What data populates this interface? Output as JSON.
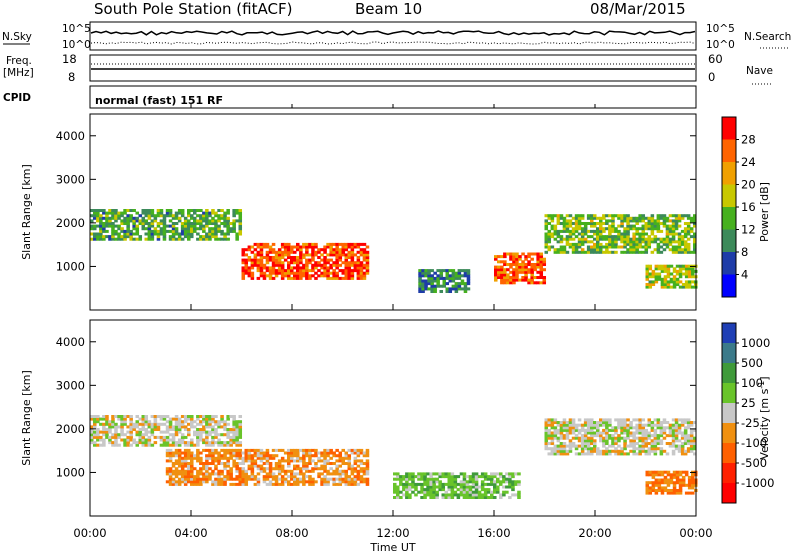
{
  "header": {
    "title": "South Pole Station (fitACF)",
    "beam": "Beam 10",
    "date": "08/Mar/2015"
  },
  "noise_panel": {
    "left_label": "N.Sky",
    "left_ticks": [
      "10^5",
      "10^0"
    ],
    "right_label": "N.Search",
    "right_ticks": [
      "10^5",
      "10^0"
    ]
  },
  "freq_panel": {
    "left_label_1": "Freq.",
    "left_label_2": "[MHz]",
    "left_ticks": [
      "18",
      "8"
    ],
    "right_label": "Nave",
    "right_ticks": [
      "60",
      "0"
    ]
  },
  "cpid_panel": {
    "label": "CPID",
    "mode": "normal (fast) 151 RF"
  },
  "colors": {
    "power": [
      "#0000ff",
      "#1e3ca8",
      "#3c8a5a",
      "#46b01e",
      "#c8c800",
      "#f0a000",
      "#ff6400",
      "#ff0000"
    ],
    "velocity": [
      "#1f3fb5",
      "#3b7a8a",
      "#3f9a3a",
      "#69c42a",
      "#c8c8c8",
      "#f09010",
      "#ff6000",
      "#ff2000",
      "#ff0000"
    ]
  },
  "chart_data": [
    {
      "type": "heatmap",
      "title": "Power",
      "ylabel": "Slant Range [km]",
      "xlabel": "",
      "xlim": [
        "00:00",
        "24:00"
      ],
      "ylim": [
        0,
        4500
      ],
      "yticks": [
        1000,
        2000,
        3000,
        4000
      ],
      "colorbar": {
        "label": "Power [dB]",
        "ticks": [
          "28",
          "24",
          "20",
          "16",
          "12",
          "8",
          "4"
        ],
        "range": [
          0,
          30
        ]
      },
      "features": [
        {
          "t0": 0,
          "t1": 6,
          "r0": 1600,
          "r1": 2300,
          "level": 12
        },
        {
          "t0": 6,
          "t1": 11,
          "r0": 700,
          "r1": 1500,
          "level": 26
        },
        {
          "t0": 13,
          "t1": 15,
          "r0": 400,
          "r1": 900,
          "level": 10
        },
        {
          "t0": 16,
          "t1": 18,
          "r0": 600,
          "r1": 1300,
          "level": 25
        },
        {
          "t0": 18,
          "t1": 24,
          "r0": 1300,
          "r1": 2200,
          "level": 14
        },
        {
          "t0": 22,
          "t1": 24,
          "r0": 500,
          "r1": 1000,
          "level": 16
        }
      ]
    },
    {
      "type": "heatmap",
      "title": "Velocity",
      "ylabel": "Slant Range [km]",
      "xlabel": "Time UT",
      "xlim": [
        "00:00",
        "24:00"
      ],
      "ylim": [
        0,
        4500
      ],
      "xticks": [
        "00:00",
        "04:00",
        "08:00",
        "12:00",
        "16:00",
        "20:00",
        "00:00"
      ],
      "yticks": [
        1000,
        2000,
        3000,
        4000
      ],
      "colorbar": {
        "label": "Velocity [m s^-1]",
        "ticks": [
          "1000",
          "500",
          "100",
          "25",
          "-25",
          "-100",
          "-500",
          "-1000"
        ],
        "range": [
          -1200,
          1200
        ]
      },
      "features": [
        {
          "t0": 0,
          "t1": 6,
          "r0": 1600,
          "r1": 2300,
          "level": 0
        },
        {
          "t0": 3,
          "t1": 11,
          "r0": 700,
          "r1": 1500,
          "level": -300
        },
        {
          "t0": 12,
          "t1": 17,
          "r0": 400,
          "r1": 1000,
          "level": 300
        },
        {
          "t0": 18,
          "t1": 24,
          "r0": 1400,
          "r1": 2200,
          "level": 0
        },
        {
          "t0": 22,
          "t1": 24,
          "r0": 500,
          "r1": 1000,
          "level": -400
        }
      ]
    }
  ]
}
